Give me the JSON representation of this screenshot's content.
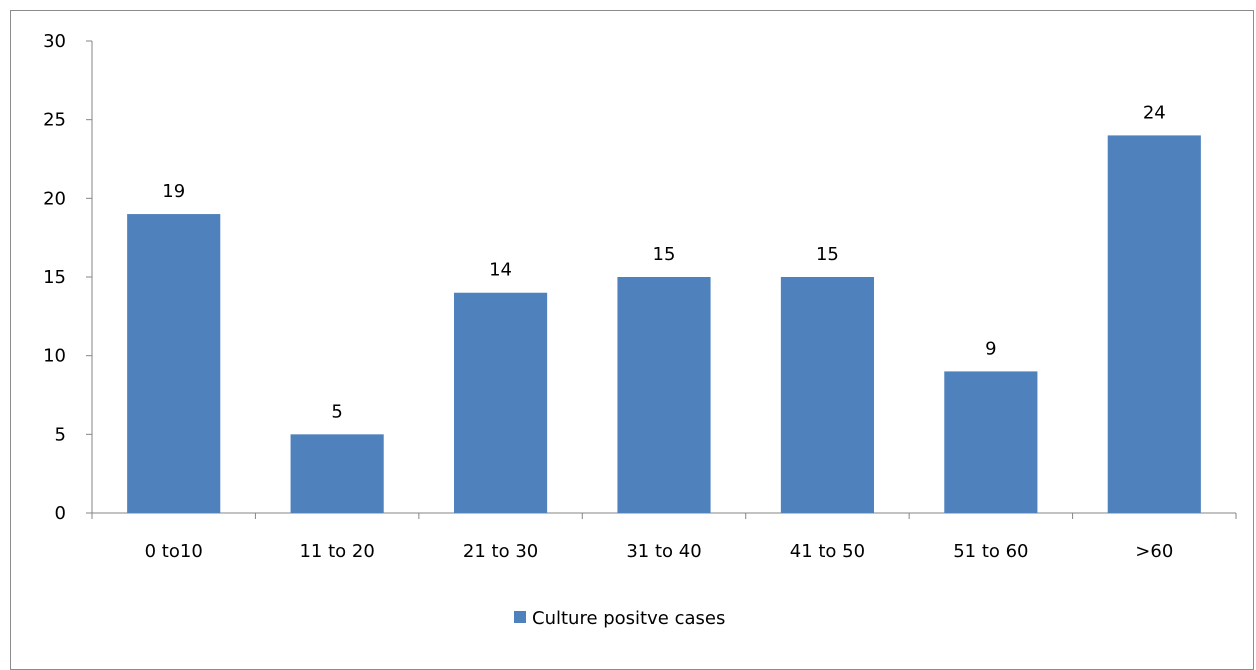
{
  "chart_data": {
    "type": "bar",
    "title": "",
    "xlabel": "",
    "ylabel": "",
    "categories": [
      "0 to10",
      "11 to 20",
      "21 to 30",
      "31 to 40",
      "41 to 50",
      "51 to 60",
      ">60"
    ],
    "series": [
      {
        "name": "Culture positve cases",
        "values": [
          19,
          5,
          14,
          15,
          15,
          9,
          24
        ],
        "color": "#4f81bd"
      }
    ],
    "ylim": [
      0,
      30
    ],
    "yticks": [
      0,
      5,
      10,
      15,
      20,
      25,
      30
    ],
    "grid": false,
    "data_labels": true,
    "legend": "bottom"
  }
}
